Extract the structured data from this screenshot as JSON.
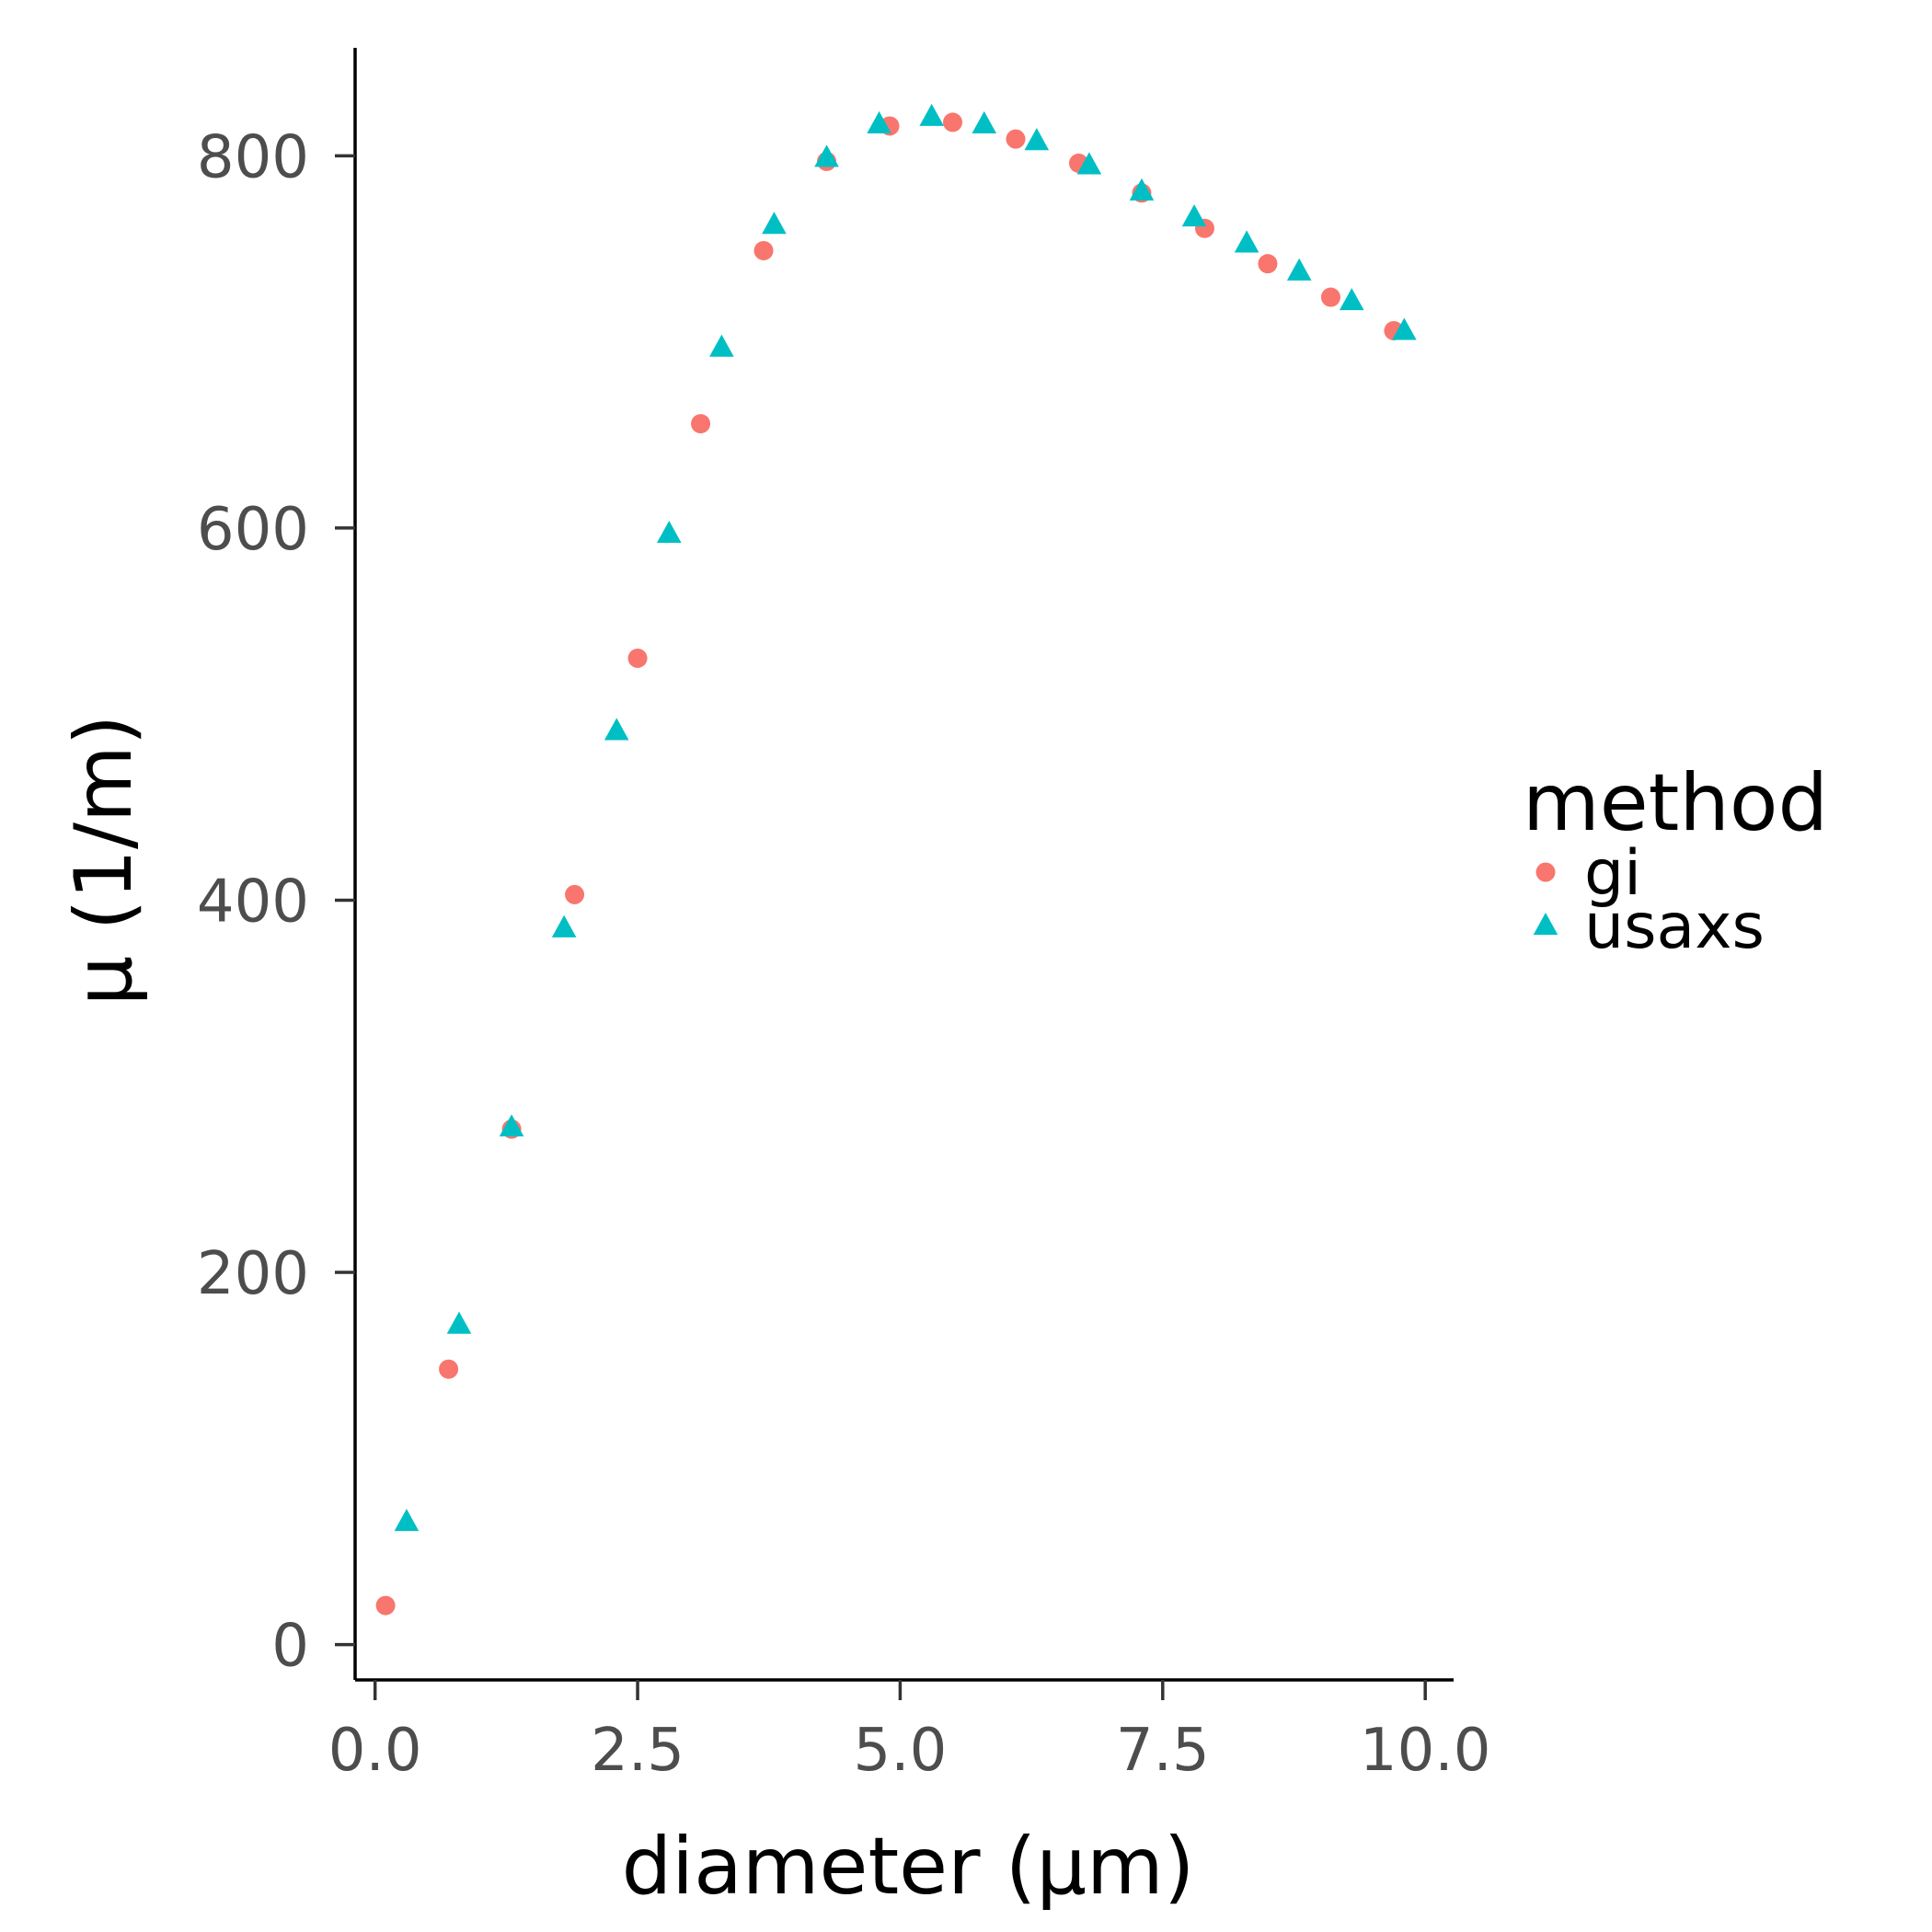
{
  "chart_data": {
    "type": "scatter",
    "title": "",
    "xlabel": "diameter (µm)",
    "ylabel": "µ (1/m)",
    "xlim": [
      -0.19,
      10.27
    ],
    "ylim": [
      -19,
      858
    ],
    "x_ticks": [
      0.0,
      2.5,
      5.0,
      7.5,
      10.0
    ],
    "x_tick_labels": [
      "0.0",
      "2.5",
      "5.0",
      "7.5",
      "10.0"
    ],
    "y_ticks": [
      0,
      200,
      400,
      600,
      800
    ],
    "y_tick_labels": [
      "0",
      "200",
      "400",
      "600",
      "800"
    ],
    "grid": false,
    "legend": {
      "title": "method",
      "position": "right"
    },
    "series": [
      {
        "name": "gi",
        "marker": "circle",
        "color": "#F8766D",
        "x": [
          0.1,
          0.7,
          1.3,
          1.9,
          2.5,
          3.1,
          3.7,
          4.3,
          4.9,
          5.5,
          6.1,
          6.7,
          7.3,
          7.9,
          8.5,
          9.1,
          9.7
        ],
        "y": [
          21,
          148,
          277,
          403,
          530,
          656,
          749,
          797,
          816,
          818,
          809,
          796,
          780,
          761,
          742,
          724,
          706
        ]
      },
      {
        "name": "usaxs",
        "marker": "triangle",
        "color": "#00BFC4",
        "x": [
          0.3,
          0.8,
          1.3,
          1.8,
          2.3,
          2.8,
          3.3,
          3.8,
          4.3,
          4.8,
          5.3,
          5.8,
          6.3,
          6.8,
          7.3,
          7.8,
          8.3,
          8.8,
          9.3,
          9.8
        ],
        "y": [
          66,
          172,
          278,
          385,
          491,
          597,
          697,
          763,
          799,
          817,
          821,
          817,
          808,
          795,
          781,
          767,
          753,
          738,
          722,
          706
        ]
      }
    ]
  }
}
